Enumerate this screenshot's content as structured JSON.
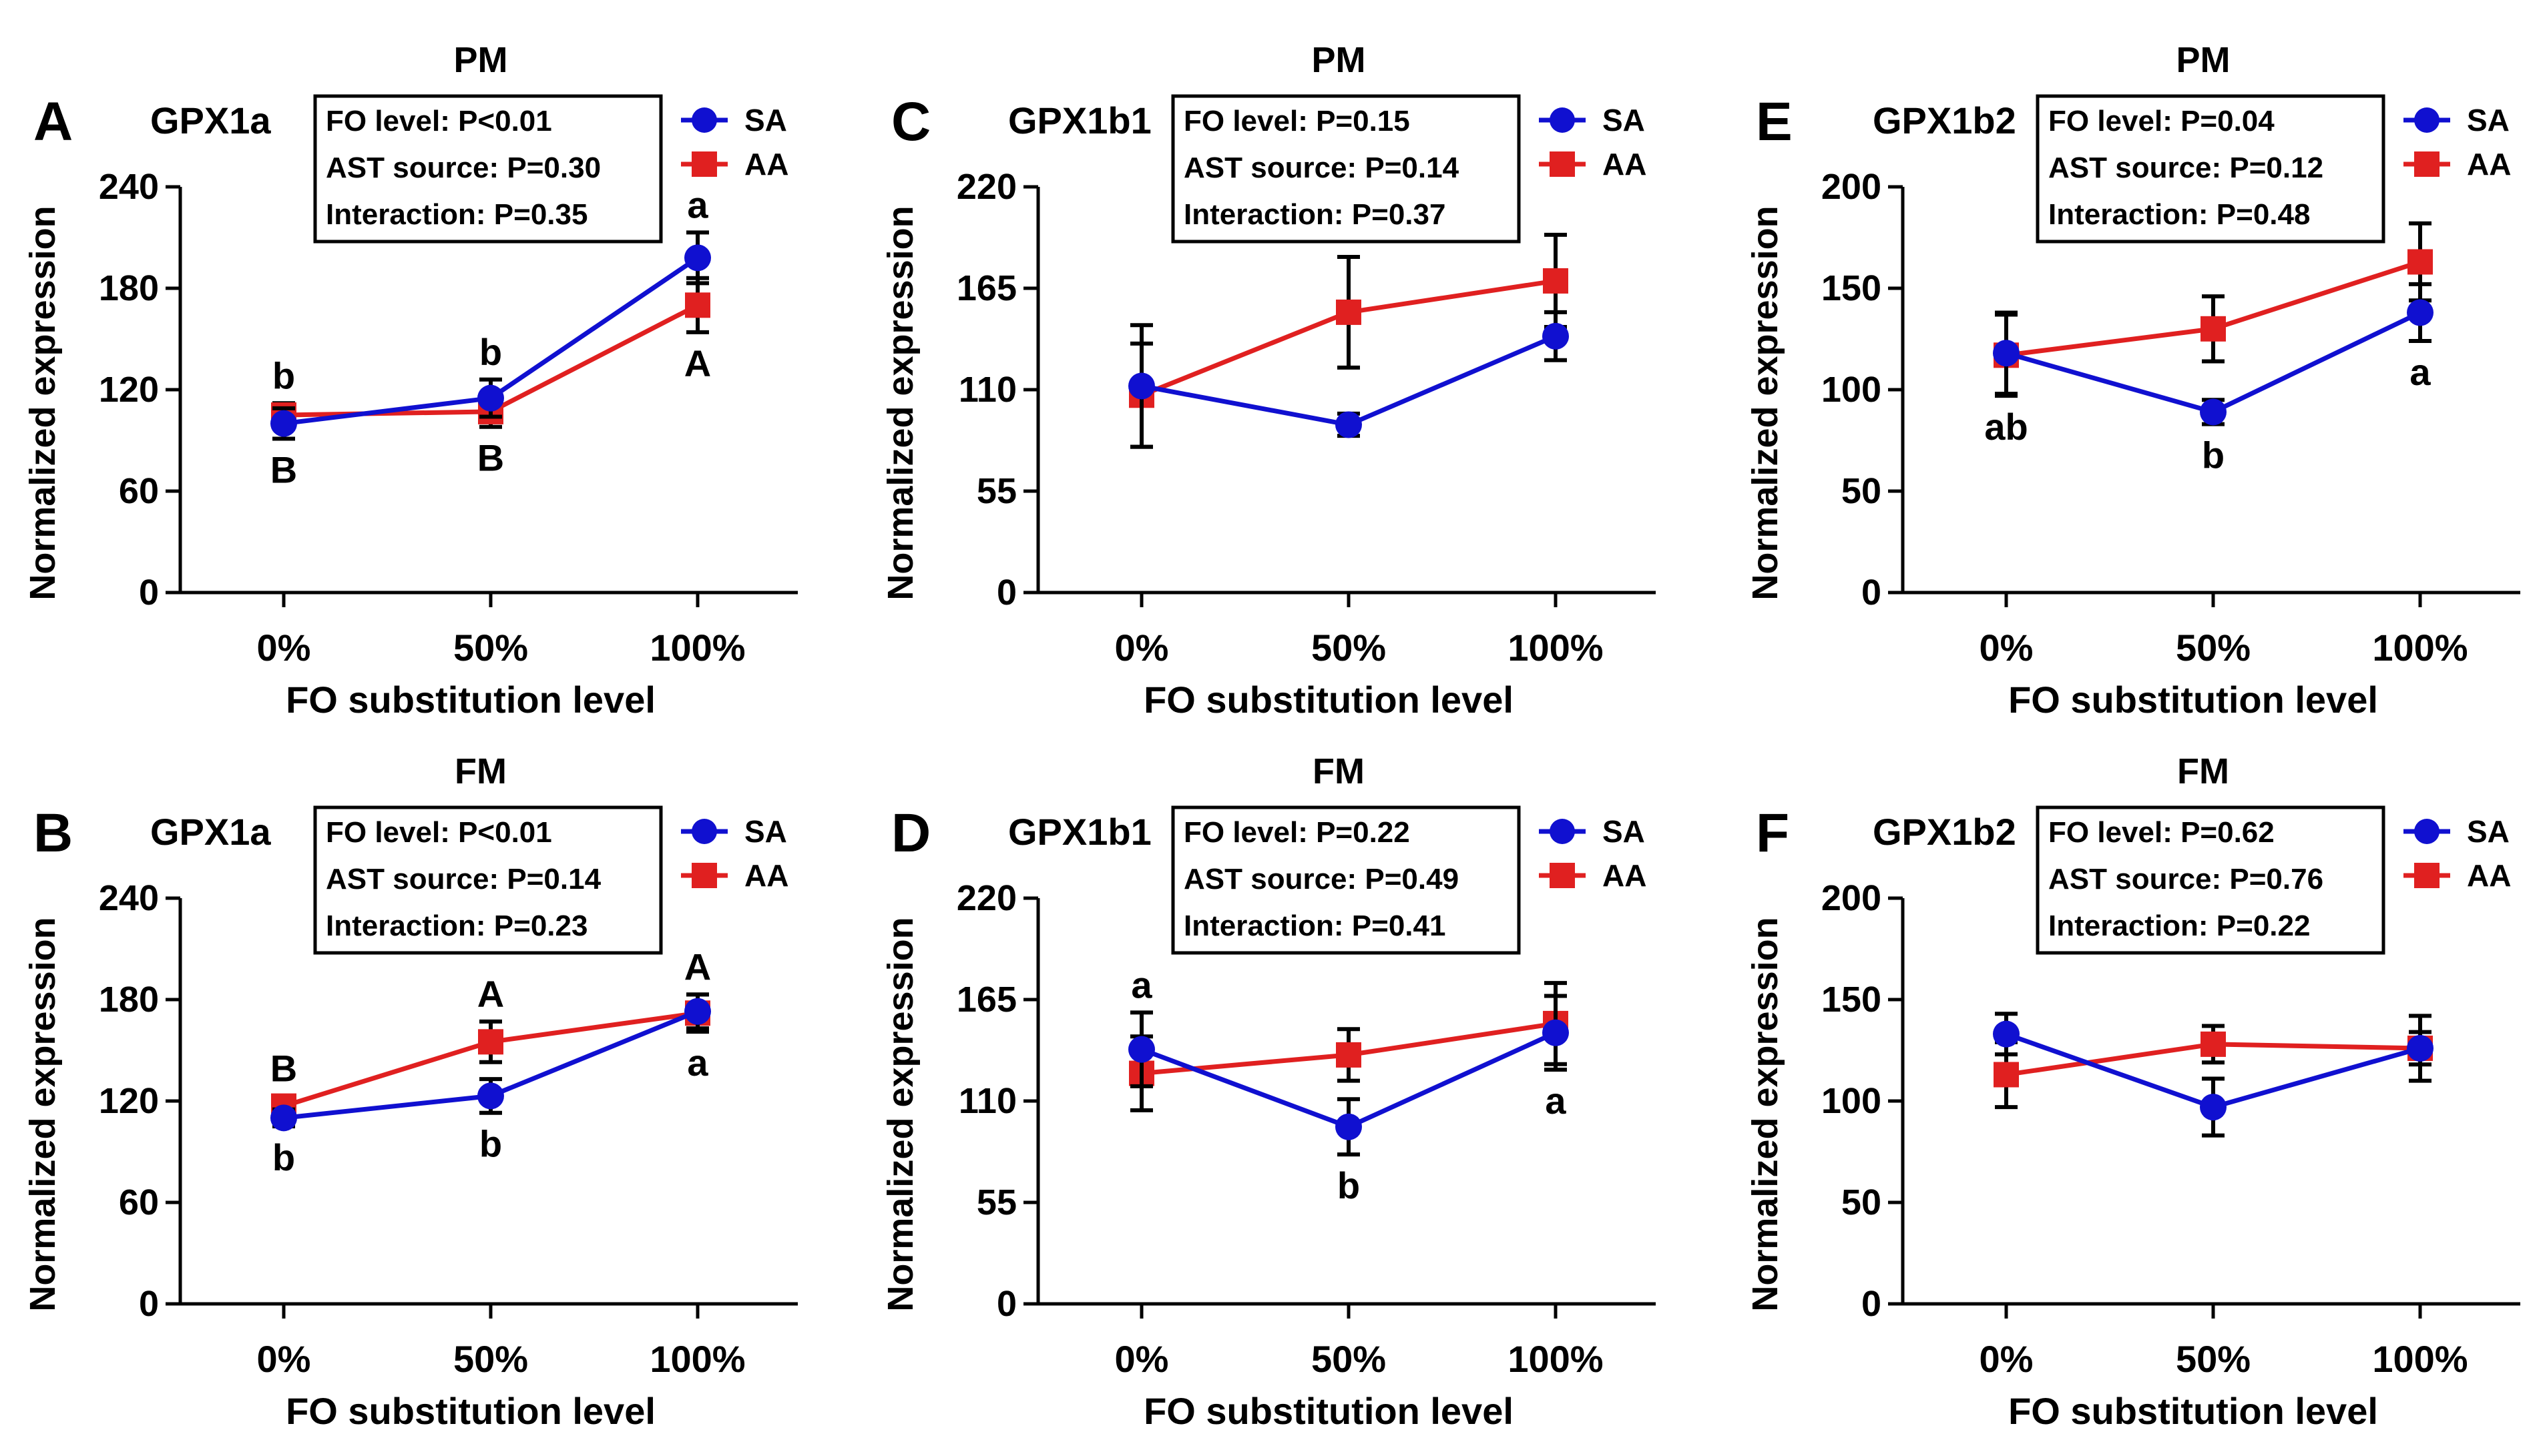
{
  "figure": {
    "series_names": [
      "SA",
      "AA"
    ],
    "series_colors": {
      "SA": "#1010d0",
      "AA": "#e02020"
    }
  },
  "chart_data": [
    {
      "type": "line",
      "panel": "A",
      "title": "PM",
      "gene": "GPX1a",
      "xlabel": "FO substitution level",
      "ylabel": "Normalized expression",
      "categories": [
        "0%",
        "50%",
        "100%"
      ],
      "ylim": [
        0,
        240
      ],
      "yticks": [
        0,
        60,
        120,
        180,
        240
      ],
      "ytick_labels": [
        "0",
        "60",
        "120",
        "180",
        "240"
      ],
      "stats": [
        "FO level: P<0.01",
        "AST source: P=0.30",
        "Interaction: P=0.35"
      ],
      "series": [
        {
          "name": "SA",
          "values": [
            100,
            115,
            198
          ],
          "errors": [
            9,
            11,
            15
          ]
        },
        {
          "name": "AA",
          "values": [
            105,
            107,
            170
          ],
          "errors": [
            7,
            9,
            16
          ]
        }
      ],
      "annotations": [
        {
          "text": "b",
          "cat": 0,
          "pos": "above"
        },
        {
          "text": "B",
          "cat": 0,
          "pos": "below"
        },
        {
          "text": "b",
          "cat": 1,
          "pos": "above"
        },
        {
          "text": "B",
          "cat": 1,
          "pos": "below"
        },
        {
          "text": "a",
          "cat": 2,
          "pos": "above"
        },
        {
          "text": "A",
          "cat": 2,
          "pos": "below"
        }
      ]
    },
    {
      "type": "line",
      "panel": "B",
      "title": "FM",
      "gene": "GPX1a",
      "xlabel": "FO substitution level",
      "ylabel": "Normalized expression",
      "categories": [
        "0%",
        "50%",
        "100%"
      ],
      "ylim": [
        0,
        240
      ],
      "yticks": [
        0,
        60,
        120,
        180,
        240
      ],
      "ytick_labels": [
        "0",
        "60",
        "120",
        "180",
        "240"
      ],
      "stats": [
        "FO level: P<0.01",
        "AST source: P=0.14",
        "Interaction: P=0.23"
      ],
      "series": [
        {
          "name": "SA",
          "values": [
            110,
            123,
            173
          ],
          "errors": [
            5,
            10,
            10
          ]
        },
        {
          "name": "AA",
          "values": [
            117,
            155,
            172
          ],
          "errors": [
            6,
            12,
            11
          ]
        }
      ],
      "annotations": [
        {
          "text": "B",
          "cat": 0,
          "pos": "above"
        },
        {
          "text": "b",
          "cat": 0,
          "pos": "below"
        },
        {
          "text": "A",
          "cat": 1,
          "pos": "above"
        },
        {
          "text": "b",
          "cat": 1,
          "pos": "below"
        },
        {
          "text": "A",
          "cat": 2,
          "pos": "above"
        },
        {
          "text": "a",
          "cat": 2,
          "pos": "below"
        }
      ]
    },
    {
      "type": "line",
      "panel": "C",
      "title": "PM",
      "gene": "GPX1b1",
      "xlabel": "FO substitution level",
      "ylabel": "Normalized expression",
      "categories": [
        "0%",
        "50%",
        "100%"
      ],
      "ylim": [
        0,
        220
      ],
      "yticks": [
        0,
        55,
        110,
        165,
        220
      ],
      "ytick_labels": [
        "0",
        "55",
        "110",
        "165",
        "220"
      ],
      "stats": [
        "FO level: P=0.15",
        "AST source: P=0.14",
        "Interaction: P=0.37"
      ],
      "series": [
        {
          "name": "SA",
          "values": [
            112,
            91,
            139
          ],
          "errors": [
            33,
            6,
            13
          ]
        },
        {
          "name": "AA",
          "values": [
            107,
            152,
            169
          ],
          "errors": [
            28,
            30,
            25
          ]
        }
      ],
      "annotations": []
    },
    {
      "type": "line",
      "panel": "D",
      "title": "FM",
      "gene": "GPX1b1",
      "xlabel": "FO substitution level",
      "ylabel": "Normalized expression",
      "categories": [
        "0%",
        "50%",
        "100%"
      ],
      "ylim": [
        0,
        220
      ],
      "yticks": [
        0,
        55,
        110,
        165,
        220
      ],
      "ytick_labels": [
        "0",
        "55",
        "110",
        "165",
        "220"
      ],
      "stats": [
        "FO level: P=0.22",
        "AST source: P=0.49",
        "Interaction: P=0.41"
      ],
      "series": [
        {
          "name": "SA",
          "values": [
            138,
            96,
            147
          ],
          "errors": [
            20,
            15,
            20
          ]
        },
        {
          "name": "AA",
          "values": [
            125,
            135,
            152
          ],
          "errors": [
            20,
            14,
            22
          ]
        }
      ],
      "annotations": [
        {
          "text": "a",
          "cat": 0,
          "pos": "above"
        },
        {
          "text": "b",
          "cat": 1,
          "pos": "below"
        },
        {
          "text": "a",
          "cat": 2,
          "pos": "below"
        }
      ]
    },
    {
      "type": "line",
      "panel": "E",
      "title": "PM",
      "gene": "GPX1b2",
      "xlabel": "FO substitution level",
      "ylabel": "Normalized expression",
      "categories": [
        "0%",
        "50%",
        "100%"
      ],
      "ylim": [
        0,
        200
      ],
      "yticks": [
        0,
        50,
        100,
        150,
        200
      ],
      "ytick_labels": [
        "0",
        "50",
        "100",
        "150",
        "200"
      ],
      "stats": [
        "FO level: P=0.04",
        "AST source: P=0.12",
        "Interaction: P=0.48"
      ],
      "series": [
        {
          "name": "SA",
          "values": [
            118,
            89,
            138
          ],
          "errors": [
            20,
            6,
            14
          ]
        },
        {
          "name": "AA",
          "values": [
            117,
            130,
            163
          ],
          "errors": [
            20,
            16,
            19
          ]
        }
      ],
      "annotations": [
        {
          "text": "ab",
          "cat": 0,
          "pos": "below"
        },
        {
          "text": "b",
          "cat": 1,
          "pos": "below"
        },
        {
          "text": "a",
          "cat": 2,
          "pos": "below"
        }
      ]
    },
    {
      "type": "line",
      "panel": "F",
      "title": "FM",
      "gene": "GPX1b2",
      "xlabel": "FO substitution level",
      "ylabel": "Normalized expression",
      "categories": [
        "0%",
        "50%",
        "100%"
      ],
      "ylim": [
        0,
        200
      ],
      "yticks": [
        0,
        50,
        100,
        150,
        200
      ],
      "ytick_labels": [
        "0",
        "50",
        "100",
        "150",
        "200"
      ],
      "stats": [
        "FO level: P=0.62",
        "AST source: P=0.76",
        "Interaction: P=0.22"
      ],
      "series": [
        {
          "name": "SA",
          "values": [
            133,
            97,
            126
          ],
          "errors": [
            10,
            14,
            8
          ]
        },
        {
          "name": "AA",
          "values": [
            113,
            128,
            126
          ],
          "errors": [
            16,
            9,
            16
          ]
        }
      ],
      "annotations": []
    }
  ]
}
